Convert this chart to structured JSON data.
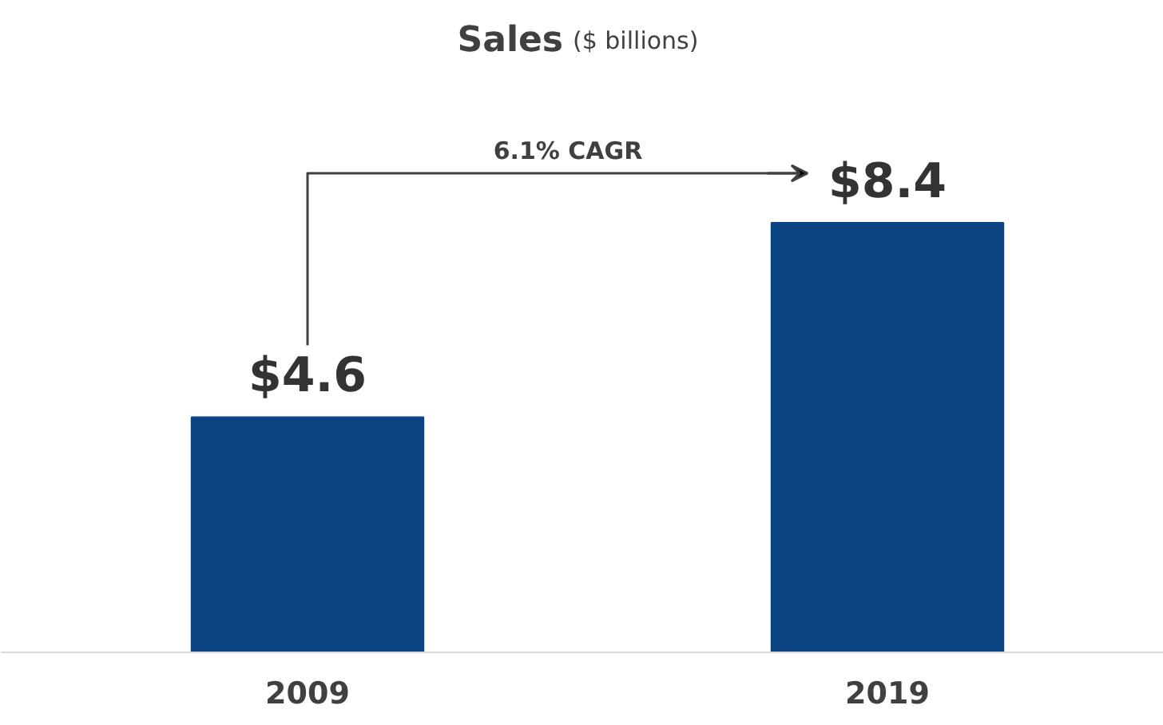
{
  "chart_data": {
    "type": "bar",
    "title": "Sales",
    "subtitle": "($ billions)",
    "categories": [
      "2009",
      "2019"
    ],
    "values": [
      4.6,
      8.4
    ],
    "value_labels": [
      "$4.6",
      "$8.4"
    ],
    "color": "#0b4383",
    "annotations": [
      "6.1% CAGR"
    ],
    "grid": false,
    "tick_labels": "x"
  }
}
